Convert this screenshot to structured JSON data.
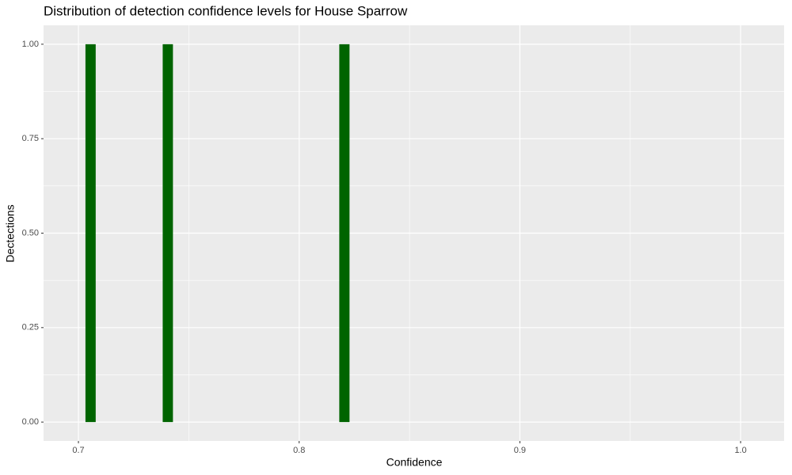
{
  "chart_data": {
    "type": "histogram",
    "title": "Distribution of detection confidence levels for House Sparrow",
    "x_label": "Confidence",
    "y_label": "Dectections",
    "bins": [
      0.703,
      0.708,
      0.713,
      0.718,
      0.723,
      0.728,
      0.733,
      0.738,
      0.743,
      0.748,
      0.753,
      0.758,
      0.763,
      0.768,
      0.773,
      0.778,
      0.783,
      0.788,
      0.793,
      0.798,
      0.803,
      0.808,
      0.813,
      0.818,
      0.823
    ],
    "values": [
      1,
      0,
      0,
      0,
      0,
      0,
      0,
      1,
      0,
      0,
      0,
      0,
      0,
      0,
      0,
      0,
      0,
      0,
      0,
      0,
      0,
      0,
      0,
      1
    ],
    "color": "#006400",
    "xlim": [
      0.6842,
      1.0197
    ],
    "xticks": [
      0.7,
      0.8,
      0.9,
      {
        "value": 1,
        "label": "1.0"
      }
    ],
    "ylim": [
      -0.05,
      1.05
    ],
    "yticks": [
      {
        "value": 0,
        "label": "0.00"
      },
      {
        "value": 0.25,
        "label": "0.25"
      },
      {
        "value": 0.5,
        "label": "0.50"
      },
      {
        "value": 0.75,
        "label": "0.75"
      },
      {
        "value": 1,
        "label": "1.00"
      }
    ],
    "grid": true
  }
}
